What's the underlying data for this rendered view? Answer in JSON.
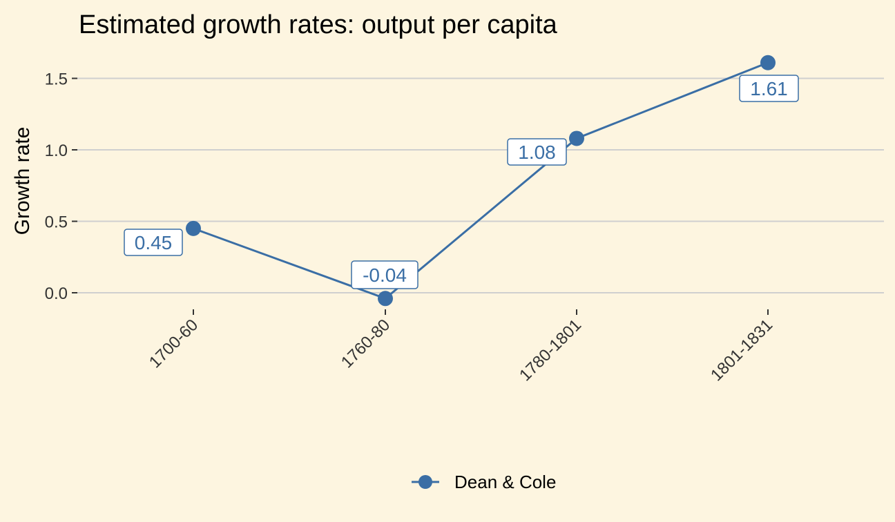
{
  "chart_data": {
    "type": "line",
    "title": "Estimated growth rates: output per capita",
    "ylabel": "Growth rate",
    "xlabel": "",
    "categories": [
      "1700-60",
      "1760-80",
      "1780-1801",
      "1801-1831"
    ],
    "series": [
      {
        "name": "Dean & Cole",
        "values": [
          0.45,
          -0.04,
          1.08,
          1.61
        ],
        "color": "#3a6ea5"
      }
    ],
    "data_labels": [
      "0.45",
      "-0.04",
      "1.08",
      "1.61"
    ],
    "y_ticks": [
      0.0,
      0.5,
      1.0,
      1.5
    ],
    "y_tick_labels": [
      "0.0",
      "0.5",
      "1.0",
      "1.5"
    ],
    "ylim": [
      -0.1,
      1.66
    ],
    "grid": true,
    "legend_position": "bottom",
    "background_color": "#fdf5e0"
  }
}
